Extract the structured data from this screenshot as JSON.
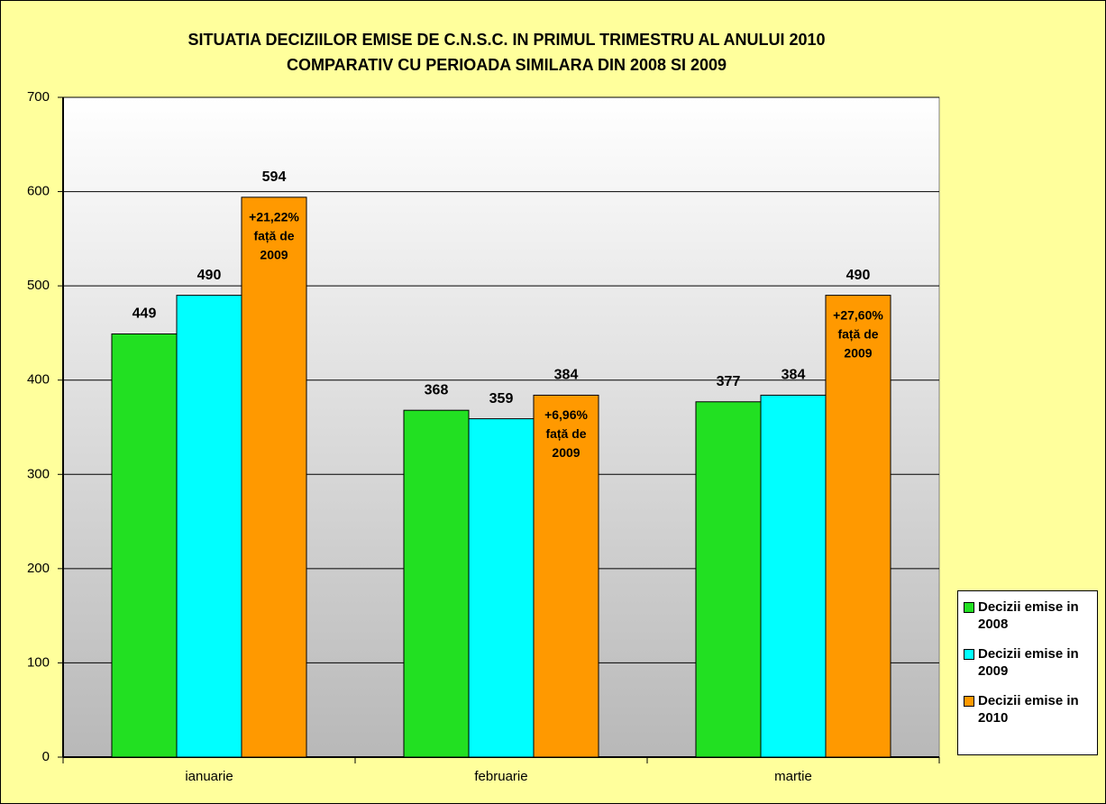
{
  "chart_data": {
    "type": "bar",
    "title": [
      "SITUATIA DECIZIILOR EMISE DE C.N.S.C. IN PRIMUL TRIMESTRU AL ANULUI 2010",
      "COMPARATIV CU PERIOADA SIMILARA DIN 2008 SI 2009"
    ],
    "categories": [
      "ianuarie",
      "februarie",
      "martie"
    ],
    "series": [
      {
        "name": "Decizii emise in 2008",
        "color": "#22e022",
        "values": [
          449,
          368,
          377
        ]
      },
      {
        "name": "Decizii emise in 2009",
        "color": "#00ffff",
        "values": [
          490,
          359,
          384
        ]
      },
      {
        "name": "Decizii emise in 2010",
        "color": "#ff9900",
        "values": [
          594,
          384,
          490
        ],
        "annotations": [
          [
            "+21,22%",
            "față de",
            "2009"
          ],
          [
            "+6,96%",
            "față de",
            "2009"
          ],
          [
            "+27,60%",
            "față de",
            "2009"
          ]
        ]
      }
    ],
    "ylim": [
      0,
      700
    ],
    "yticks": [
      0,
      100,
      200,
      300,
      400,
      500,
      600,
      700
    ],
    "grid": true,
    "legend": "right"
  }
}
